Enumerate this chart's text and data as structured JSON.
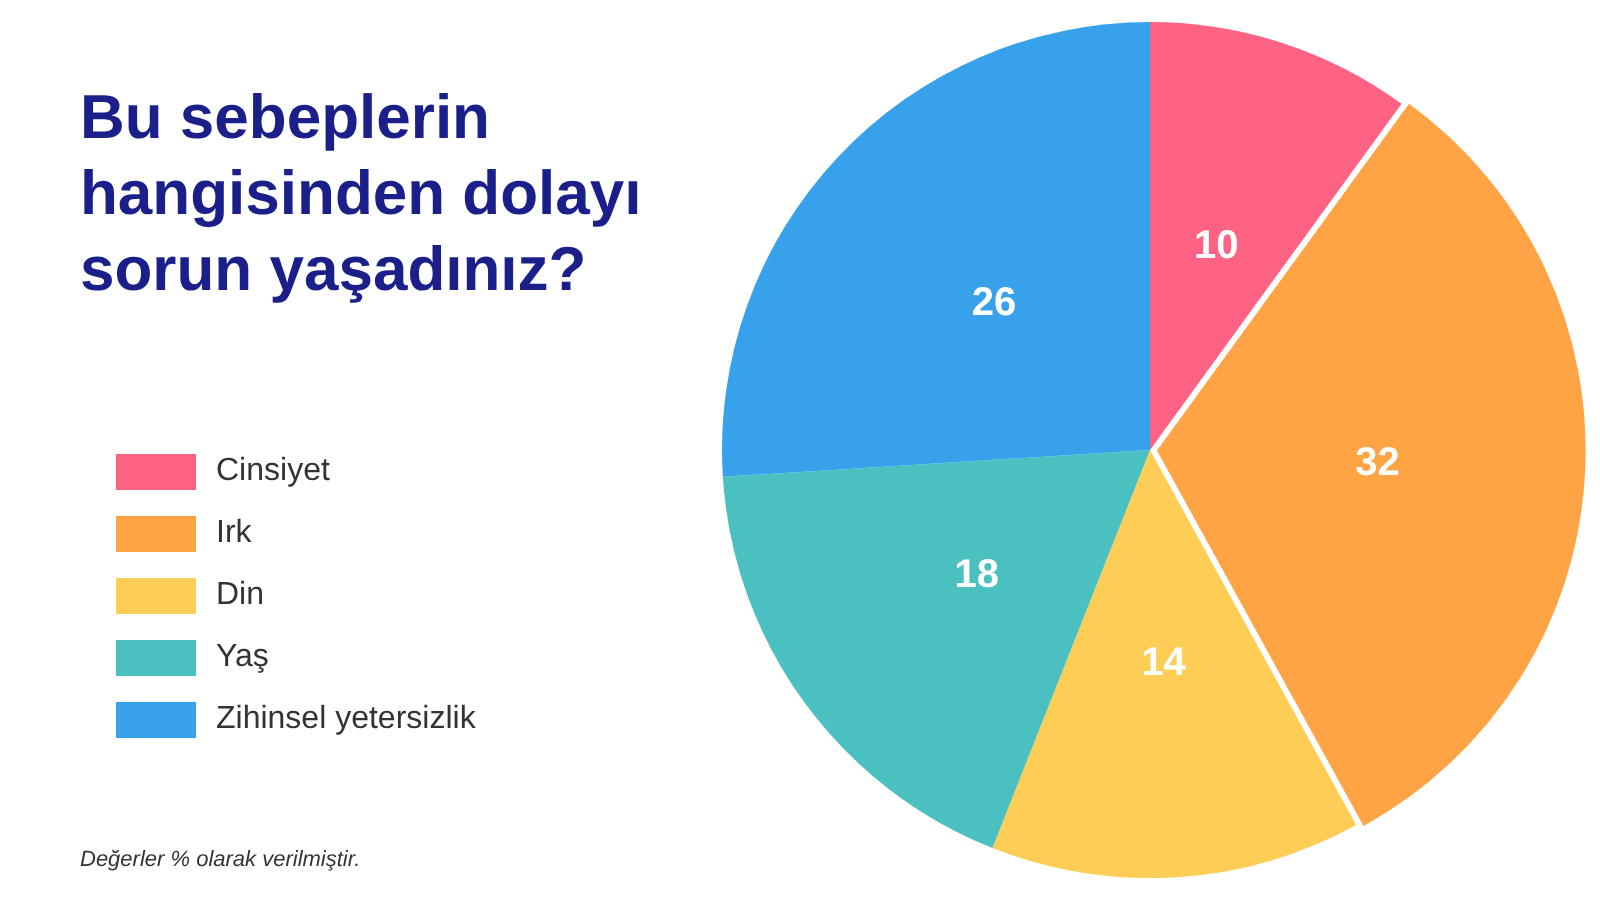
{
  "chart_data": {
    "type": "pie",
    "title": "Bu sebeplerin hangisinden dolayı sorun yaşadınız?",
    "categories": [
      "Cinsiyet",
      "Irk",
      "Din",
      "Yaş",
      "Zihinsel yetersizlik"
    ],
    "values": [
      10,
      32,
      14,
      18,
      26
    ],
    "colors": [
      "#fe6383",
      "#fea444",
      "#fecd56",
      "#4bc0c0",
      "#37a2eb"
    ],
    "data_labels": true,
    "legend": "left",
    "annotations": [
      "Değerler % olarak verilmiştir."
    ]
  }
}
